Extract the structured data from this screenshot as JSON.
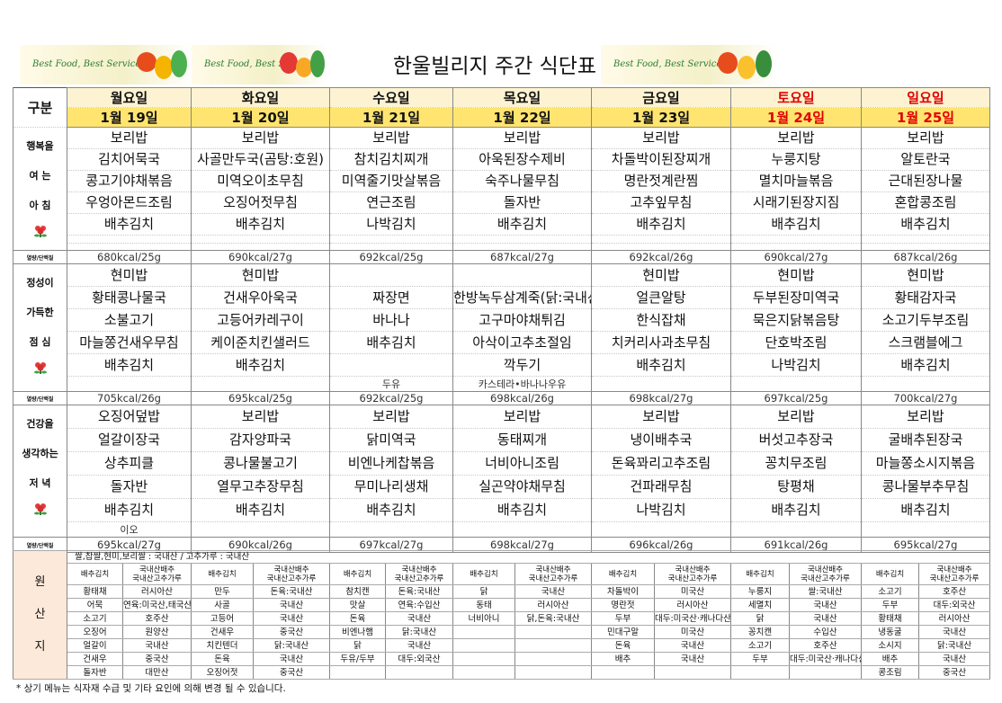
{
  "header": {
    "title": "한울빌리지 주간 식단표",
    "banners": [
      "Best Food, Best Service",
      "Best Food, Best Service",
      "Best Food, Best Service"
    ]
  },
  "table": {
    "corner": "구분",
    "days": [
      {
        "name": "월요일",
        "date": "1월 19일",
        "weekend": false
      },
      {
        "name": "화요일",
        "date": "1월 20일",
        "weekend": false
      },
      {
        "name": "수요일",
        "date": "1월 21일",
        "weekend": false
      },
      {
        "name": "목요일",
        "date": "1월 22일",
        "weekend": false
      },
      {
        "name": "금요일",
        "date": "1월 23일",
        "weekend": false
      },
      {
        "name": "토요일",
        "date": "1월 24일",
        "weekend": true
      },
      {
        "name": "일요일",
        "date": "1월 25일",
        "weekend": true
      }
    ],
    "meals": [
      {
        "label": [
          "행복을",
          "여 는",
          "아 침"
        ],
        "kcal_label": "열량/단백질",
        "items": [
          [
            "보리밥",
            "김치어묵국",
            "콩고기야채볶음",
            "우엉아몬드조림",
            "배추김치"
          ],
          [
            "보리밥",
            "사골만두국(곰탕:호원)",
            "미역오이초무침",
            "오징어젓무침",
            "배추김치"
          ],
          [
            "보리밥",
            "참치김치찌개",
            "미역줄기맛살볶음",
            "연근조림",
            "나박김치"
          ],
          [
            "보리밥",
            "아욱된장수제비",
            "숙주나물무침",
            "돌자반",
            "배추김치"
          ],
          [
            "보리밥",
            "차돌박이된장찌개",
            "명란젓계란찜",
            "고추잎무침",
            "배추김치"
          ],
          [
            "보리밥",
            "누룽지탕",
            "멸치마늘볶음",
            "시래기된장지짐",
            "배추김치"
          ],
          [
            "보리밥",
            "알토란국",
            "근대된장나물",
            "혼합콩조림",
            "배추김치"
          ]
        ],
        "kcal": [
          "680kcal/25g",
          "690kcal/27g",
          "692kcal/25g",
          "687kcal/27g",
          "692kcal/26g",
          "690kcal/27g",
          "687kcal/26g"
        ]
      },
      {
        "label": [
          "정성이",
          "가득한",
          "점 심"
        ],
        "kcal_label": "열량/단백질",
        "items": [
          [
            "현미밥",
            "황태콩나물국",
            "소불고기",
            "마늘쫑건새우무침",
            "배추김치"
          ],
          [
            "현미밥",
            "건새우아욱국",
            "고등어카레구이",
            "케이준치킨샐러드",
            "배추김치"
          ],
          [
            null,
            "짜장면",
            "바나나",
            "배추김치",
            null
          ],
          [
            null,
            "한방녹두삼계죽(닭:국내산)",
            "고구마야채튀김",
            "아삭이고추초절임",
            "깍두기"
          ],
          [
            "현미밥",
            "얼큰알탕",
            "한식잡채",
            "치커리사과초무침",
            "배추김치"
          ],
          [
            "현미밥",
            "두부된장미역국",
            "묵은지닭볶음탕",
            "단호박조림",
            "나박김치"
          ],
          [
            "현미밥",
            "황태감자국",
            "소고기두부조림",
            "스크램블에그",
            "배추김치"
          ]
        ],
        "extras": [
          null,
          null,
          "두유",
          "카스테라•바나나우유",
          null,
          null,
          null
        ],
        "kcal": [
          "705kcal/26g",
          "695kcal/25g",
          "692kcal/25g",
          "698kcal/26g",
          "698kcal/27g",
          "697kcal/25g",
          "700kcal/27g"
        ]
      },
      {
        "label": [
          "건강을",
          "생각하는",
          "저 녁"
        ],
        "kcal_label": "열량/단백질",
        "items": [
          [
            "오징어덮밥",
            "얼갈이장국",
            "상추피클",
            "돌자반",
            "배추김치"
          ],
          [
            "보리밥",
            "감자양파국",
            "콩나물불고기",
            "열무고추장무침",
            "배추김치"
          ],
          [
            "보리밥",
            "닭미역국",
            "비엔나케찹볶음",
            "무미나리생채",
            "배추김치"
          ],
          [
            "보리밥",
            "동태찌개",
            "너비아니조림",
            "실곤약야채무침",
            "배추김치"
          ],
          [
            "보리밥",
            "냉이배추국",
            "돈육꽈리고추조림",
            "건파래무침",
            "나박김치"
          ],
          [
            "보리밥",
            "버섯고추장국",
            "꽁치무조림",
            "탕평채",
            "배추김치"
          ],
          [
            "보리밥",
            "굴배추된장국",
            "마늘쫑소시지볶음",
            "콩나물부추무침",
            "배추김치"
          ]
        ],
        "extras": [
          "이오",
          null,
          null,
          null,
          null,
          null,
          null
        ],
        "kcal": [
          "695kcal/27g",
          "690kcal/26g",
          "697kcal/27g",
          "698kcal/27g",
          "696kcal/26g",
          "691kcal/26g",
          "695kcal/27g"
        ]
      }
    ]
  },
  "origin": {
    "label": [
      "원",
      "산",
      "지"
    ],
    "note": "쌀,찹쌀,현미,보리쌀 : 국내산 / 고추가루 : 국내산",
    "rows": [
      [
        "배추김치",
        "국내산배추\n국내산고추가루",
        "배추김치",
        "국내산배추\n국내산고추가루",
        "배추김치",
        "국내산배추\n국내산고추가루",
        "배추김치",
        "국내산배추\n국내산고추가루",
        "배추김치",
        "국내산배추\n국내산고추가루",
        "배추김치",
        "국내산배추\n국내산고추가루",
        "배추김치",
        "국내산배추\n국내산고추가루"
      ],
      [
        "황태채",
        "러시아산",
        "만두",
        "돈육:국내산",
        "참치캔",
        "돈육:국내산",
        "닭",
        "국내산",
        "차돌박이",
        "미국산",
        "누룽지",
        "쌀:국내산",
        "소고기",
        "호주산"
      ],
      [
        "어묵",
        "연육:미국산,태국산",
        "사골",
        "국내산",
        "맛살",
        "연육:수입산",
        "동태",
        "러시아산",
        "명란젓",
        "러시아산",
        "세멸치",
        "국내산",
        "두부",
        "대두:외국산"
      ],
      [
        "소고기",
        "호주산",
        "고등어",
        "국내산",
        "돈육",
        "국내산",
        "너비아니",
        "닭,돈육:국내산",
        "두부",
        "대두:미국산·캐나다산",
        "닭",
        "국내산",
        "황태채",
        "러시아산"
      ],
      [
        "오징어",
        "원양산",
        "건새우",
        "중국산",
        "비엔나햄",
        "닭:국내산",
        null,
        null,
        "민대구알",
        "미국산",
        "꽁치캔",
        "수입산",
        "냉동굴",
        "국내산"
      ],
      [
        "얼갈이",
        "국내산",
        "치킨텐더",
        "닭:국내산",
        "닭",
        "국내산",
        null,
        null,
        "돈육",
        "국내산",
        "소고기",
        "호주산",
        "소시지",
        "닭:국내산"
      ],
      [
        "건새우",
        "중국산",
        "돈육",
        "국내산",
        "두유/두부",
        "대두:외국산",
        null,
        null,
        "배추",
        "국내산",
        "두부",
        "대두:미국산·캐나다산",
        "배추",
        "국내산"
      ],
      [
        "돌자반",
        "대만산",
        "오징어젓",
        "중국산",
        null,
        null,
        null,
        null,
        null,
        null,
        null,
        null,
        "콩조림",
        "중국산"
      ]
    ]
  },
  "footer": "* 상기 메뉴는 식자재 수급 및 기타 요인에 의해 변경 될 수 있습니다."
}
